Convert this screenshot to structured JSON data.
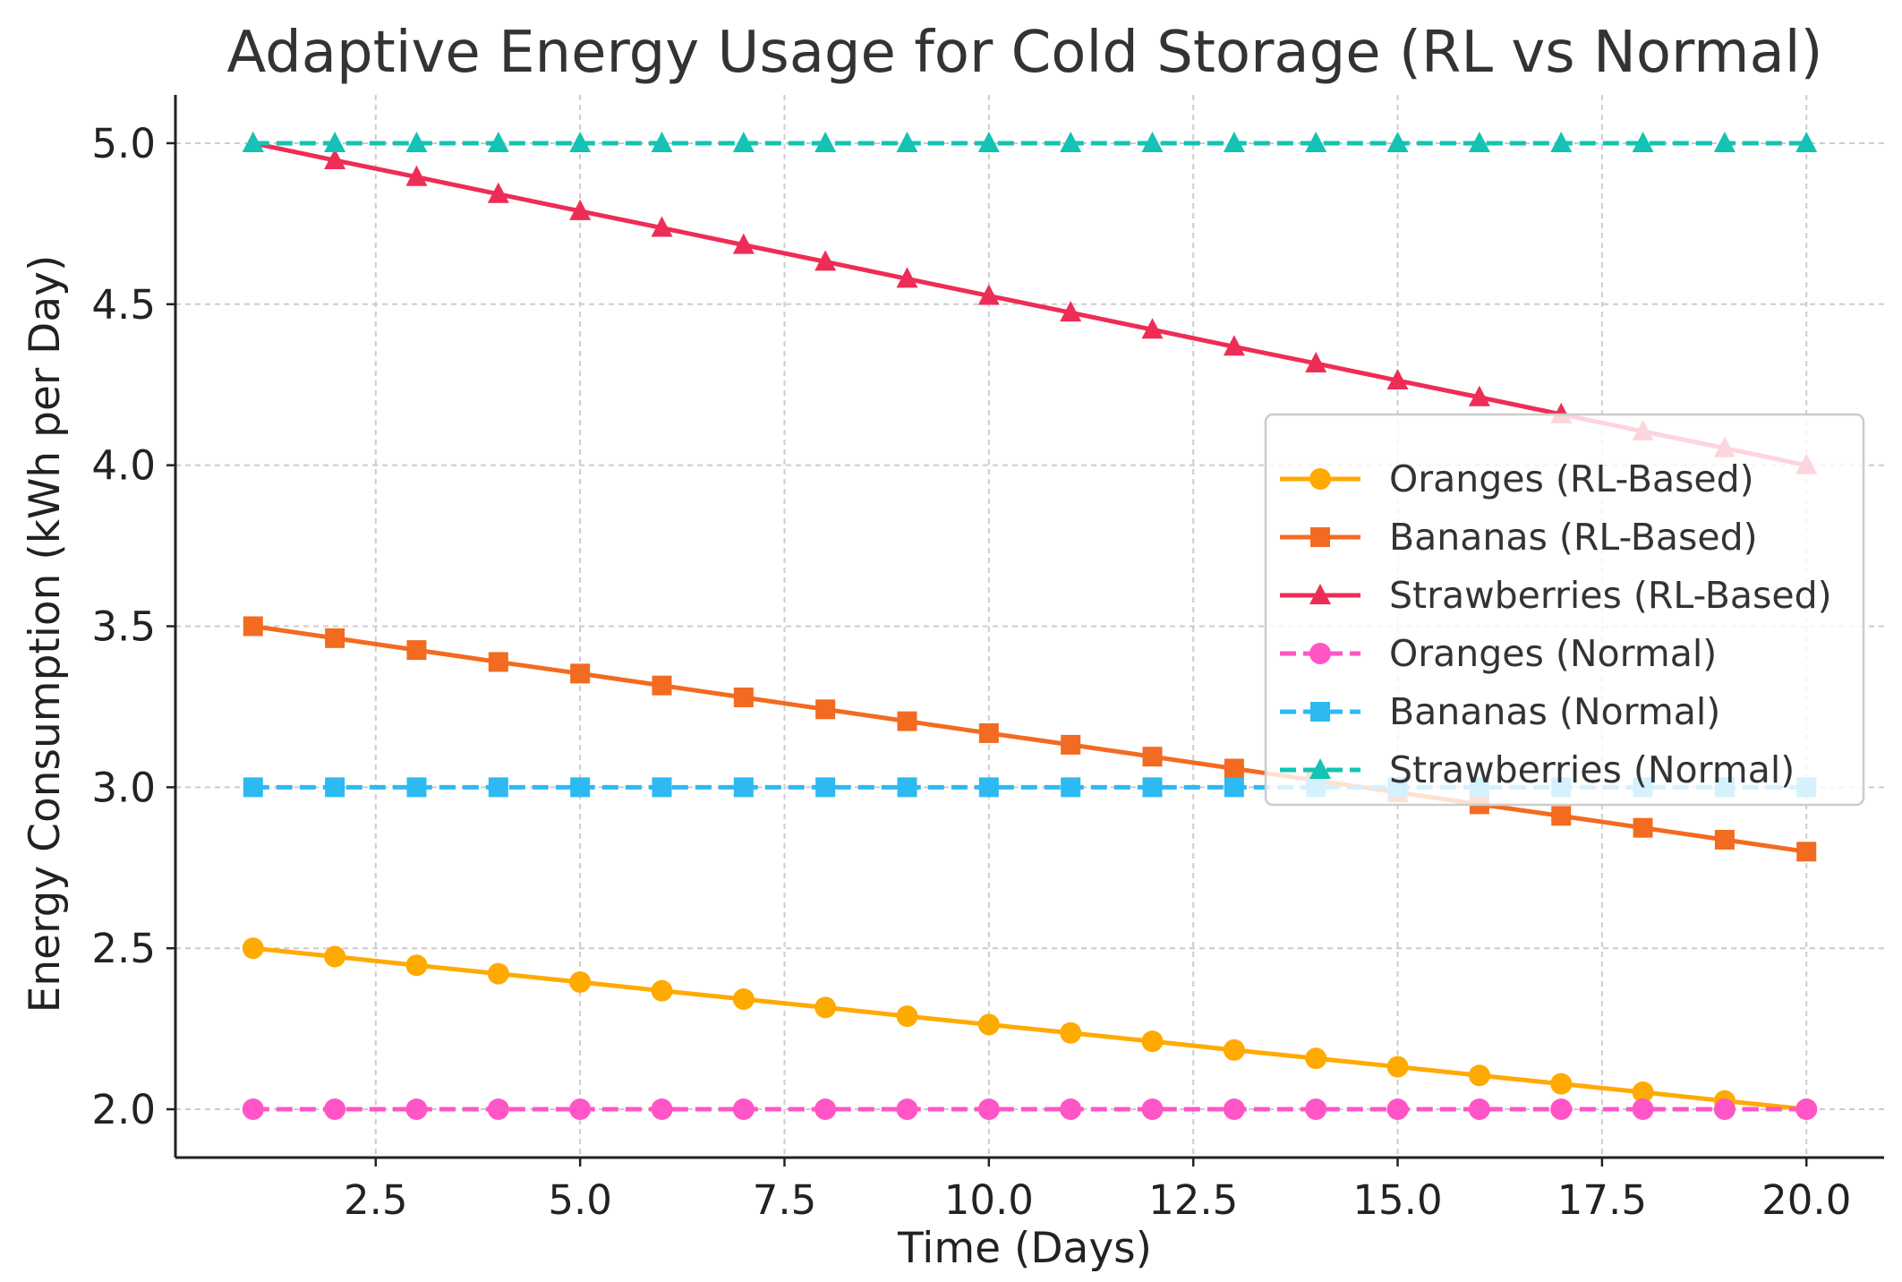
{
  "chart_data": {
    "type": "line",
    "title": "Adaptive Energy Usage for Cold Storage (RL vs Normal)",
    "xlabel": "Time (Days)",
    "ylabel": "Energy Consumption (kWh per Day)",
    "xlim": [
      0.05,
      20.95
    ],
    "ylim": [
      1.85,
      5.15
    ],
    "xticks": [
      2.5,
      5.0,
      7.5,
      10.0,
      12.5,
      15.0,
      17.5,
      20.0
    ],
    "xtick_labels": [
      "2.5",
      "5.0",
      "7.5",
      "10.0",
      "12.5",
      "15.0",
      "17.5",
      "20.0"
    ],
    "yticks": [
      2.0,
      2.5,
      3.0,
      3.5,
      4.0,
      4.5,
      5.0
    ],
    "ytick_labels": [
      "2.0",
      "2.5",
      "3.0",
      "3.5",
      "4.0",
      "4.5",
      "5.0"
    ],
    "grid": true,
    "legend_position": "center-right",
    "x": [
      1,
      2,
      3,
      4,
      5,
      6,
      7,
      8,
      9,
      10,
      11,
      12,
      13,
      14,
      15,
      16,
      17,
      18,
      19,
      20
    ],
    "series": [
      {
        "name": "Oranges (RL-Based)",
        "color": "#FFAA00",
        "marker": "circle",
        "dash": "solid",
        "values": [
          2.5,
          2.474,
          2.447,
          2.421,
          2.395,
          2.368,
          2.342,
          2.316,
          2.289,
          2.263,
          2.237,
          2.211,
          2.184,
          2.158,
          2.132,
          2.105,
          2.079,
          2.053,
          2.026,
          2.0
        ]
      },
      {
        "name": "Bananas (RL-Based)",
        "color": "#F26B21",
        "marker": "square",
        "dash": "solid",
        "values": [
          3.5,
          3.463,
          3.426,
          3.389,
          3.353,
          3.316,
          3.279,
          3.242,
          3.205,
          3.168,
          3.132,
          3.095,
          3.058,
          3.021,
          2.984,
          2.947,
          2.911,
          2.874,
          2.837,
          2.8
        ]
      },
      {
        "name": "Strawberries (RL-Based)",
        "color": "#EE2D56",
        "marker": "triangle",
        "dash": "solid",
        "values": [
          5.0,
          4.947,
          4.895,
          4.842,
          4.789,
          4.737,
          4.684,
          4.632,
          4.579,
          4.526,
          4.474,
          4.421,
          4.368,
          4.316,
          4.263,
          4.211,
          4.158,
          4.105,
          4.053,
          4.0
        ]
      },
      {
        "name": "Oranges (Normal)",
        "color": "#FF55C6",
        "marker": "circle",
        "dash": "dashed",
        "values": [
          2.0,
          2.0,
          2.0,
          2.0,
          2.0,
          2.0,
          2.0,
          2.0,
          2.0,
          2.0,
          2.0,
          2.0,
          2.0,
          2.0,
          2.0,
          2.0,
          2.0,
          2.0,
          2.0,
          2.0
        ]
      },
      {
        "name": "Bananas (Normal)",
        "color": "#2DB9F2",
        "marker": "square",
        "dash": "dashed",
        "values": [
          3.0,
          3.0,
          3.0,
          3.0,
          3.0,
          3.0,
          3.0,
          3.0,
          3.0,
          3.0,
          3.0,
          3.0,
          3.0,
          3.0,
          3.0,
          3.0,
          3.0,
          3.0,
          3.0,
          3.0
        ]
      },
      {
        "name": "Strawberries (Normal)",
        "color": "#14C3B3",
        "marker": "triangle",
        "dash": "dashed",
        "values": [
          5.0,
          5.0,
          5.0,
          5.0,
          5.0,
          5.0,
          5.0,
          5.0,
          5.0,
          5.0,
          5.0,
          5.0,
          5.0,
          5.0,
          5.0,
          5.0,
          5.0,
          5.0,
          5.0,
          5.0
        ]
      }
    ]
  }
}
